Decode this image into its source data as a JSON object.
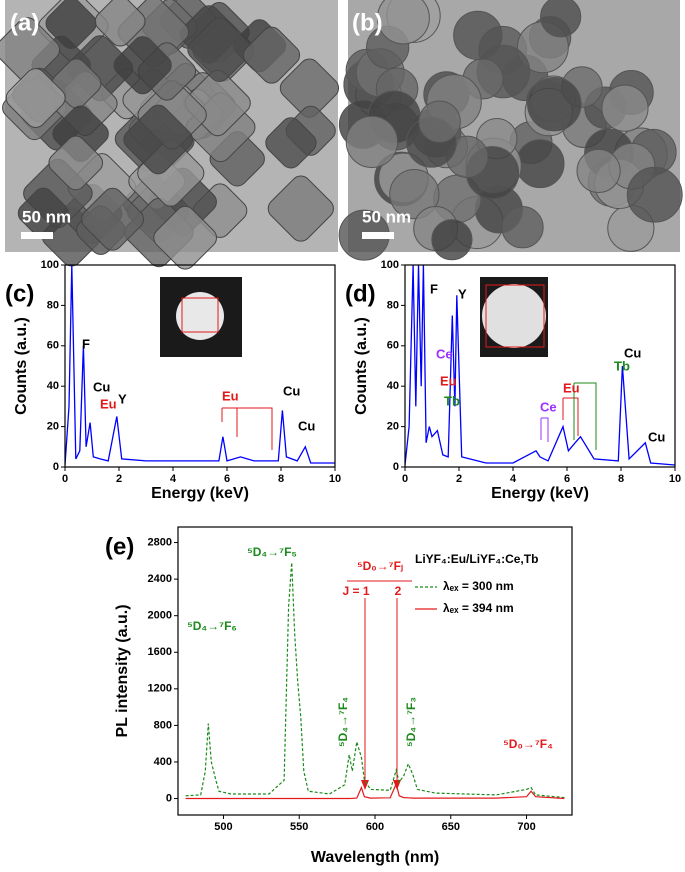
{
  "panels": {
    "a": {
      "label": "(a)",
      "scale_bar": "50 nm"
    },
    "b": {
      "label": "(b)",
      "scale_bar": "50 nm"
    }
  },
  "chart_data": [
    {
      "type": "line",
      "panel_label": "(c)",
      "x_label": "Energy (keV)",
      "y_label": "Counts (a.u.)",
      "xlim": [
        0,
        10
      ],
      "ylim": [
        0,
        100
      ],
      "xticks": [
        0,
        2,
        4,
        6,
        8,
        10
      ],
      "yticks": [
        0,
        20,
        40,
        60,
        80,
        100
      ],
      "x": [
        0,
        0.15,
        0.25,
        0.4,
        0.55,
        0.68,
        0.78,
        0.93,
        1.05,
        1.3,
        1.6,
        1.76,
        1.92,
        2.1,
        3,
        4,
        5,
        5.7,
        5.85,
        6.0,
        6.5,
        7,
        7.9,
        8.05,
        8.2,
        8.6,
        8.9,
        9.1,
        10
      ],
      "series": [
        {
          "name": "EDS",
          "color": "#0000ff",
          "values": [
            1,
            30,
            100,
            4,
            8,
            60,
            10,
            22,
            5,
            4,
            3,
            14,
            25,
            4,
            3,
            3,
            3,
            3,
            15,
            3,
            5,
            3,
            3,
            28,
            5,
            3,
            10,
            2,
            2
          ]
        }
      ],
      "annotations": [
        {
          "text": "F",
          "color": "#000000"
        },
        {
          "text": "Cu",
          "color": "#000000"
        },
        {
          "text": "Eu",
          "color": "#e31a1c"
        },
        {
          "text": "Y",
          "color": "#000000"
        },
        {
          "text": "Eu",
          "color": "#e31a1c"
        },
        {
          "text": "Cu",
          "color": "#000000"
        },
        {
          "text": "Cu",
          "color": "#000000"
        }
      ]
    },
    {
      "type": "line",
      "panel_label": "(d)",
      "x_label": "Energy (keV)",
      "y_label": "Counts (a.u.)",
      "xlim": [
        0,
        10
      ],
      "ylim": [
        0,
        100
      ],
      "xticks": [
        0,
        2,
        4,
        6,
        8,
        10
      ],
      "yticks": [
        0,
        20,
        40,
        60,
        80,
        100
      ],
      "x": [
        0,
        0.15,
        0.3,
        0.4,
        0.5,
        0.6,
        0.68,
        0.78,
        0.9,
        1.0,
        1.2,
        1.4,
        1.6,
        1.75,
        1.85,
        1.92,
        2.1,
        3,
        4,
        4.85,
        5.0,
        5.3,
        5.85,
        6.05,
        6.3,
        6.5,
        7,
        7.9,
        8.05,
        8.3,
        8.9,
        9.1,
        10
      ],
      "series": [
        {
          "name": "EDS",
          "color": "#0000ff",
          "values": [
            1,
            20,
            100,
            30,
            100,
            40,
            100,
            12,
            20,
            15,
            18,
            6,
            5,
            75,
            30,
            85,
            5,
            2,
            2,
            8,
            5,
            3,
            20,
            8,
            12,
            15,
            4,
            3,
            50,
            4,
            12,
            2,
            1
          ]
        }
      ],
      "annotations": [
        {
          "text": "F",
          "color": "#000000"
        },
        {
          "text": "Y",
          "color": "#000000"
        },
        {
          "text": "Ce",
          "color": "#9b30ff"
        },
        {
          "text": "Eu",
          "color": "#e31a1c"
        },
        {
          "text": "Tb",
          "color": "#1a8a1a"
        },
        {
          "text": "Ce",
          "color": "#9b30ff"
        },
        {
          "text": "Eu",
          "color": "#e31a1c"
        },
        {
          "text": "Tb",
          "color": "#1a8a1a"
        },
        {
          "text": "Cu",
          "color": "#000000"
        },
        {
          "text": "Cu",
          "color": "#000000"
        }
      ]
    },
    {
      "type": "line",
      "panel_label": "(e)",
      "x_label": "Wavelength  (nm)",
      "y_label": "PL intensity  (a.u.)",
      "xlim": [
        470,
        730
      ],
      "ylim": [
        -180,
        2970
      ],
      "xticks": [
        500,
        550,
        600,
        650,
        700
      ],
      "yticks": [
        0,
        400,
        800,
        1200,
        1600,
        2000,
        2400,
        2800
      ],
      "legend_title": "LiYF₄:Eu/LiYF₄:Ce,Tb",
      "x": [
        475,
        485,
        488,
        490,
        492,
        495,
        497,
        505,
        530,
        540,
        543,
        545,
        547,
        549,
        551,
        553,
        556,
        570,
        580,
        583,
        585,
        588,
        591,
        593,
        597,
        610,
        614,
        616,
        619,
        622,
        625,
        628,
        640,
        660,
        680,
        700,
        703,
        706,
        725
      ],
      "series": [
        {
          "name": "λₑₓ = 300 nm",
          "color": "#1a8a1a",
          "dashed": true,
          "values": [
            30,
            40,
            300,
            820,
            400,
            200,
            80,
            50,
            50,
            200,
            2100,
            2580,
            1800,
            1280,
            900,
            300,
            80,
            50,
            150,
            480,
            300,
            620,
            450,
            200,
            100,
            90,
            310,
            180,
            250,
            380,
            260,
            100,
            60,
            50,
            40,
            100,
            120,
            40,
            10
          ]
        },
        {
          "name": "λₑₓ = 394 nm",
          "color": "#e31a1c",
          "dashed": false,
          "values": [
            0,
            0,
            0,
            0,
            0,
            0,
            0,
            0,
            0,
            0,
            0,
            0,
            0,
            0,
            0,
            0,
            0,
            0,
            0,
            0,
            2,
            5,
            120,
            20,
            5,
            8,
            160,
            30,
            10,
            8,
            5,
            5,
            5,
            5,
            5,
            20,
            80,
            20,
            0
          ]
        }
      ],
      "annotations": [
        {
          "text": "⁵D₄→⁷F₆",
          "color": "#1a8a1a"
        },
        {
          "text": "⁵D₄→⁷F₅",
          "color": "#1a8a1a"
        },
        {
          "text": "⁵D₄→⁷F₄",
          "color": "#1a8a1a"
        },
        {
          "text": "⁵D₀→⁷Fⱼ",
          "color": "#e31a1c"
        },
        {
          "text": "J = 1",
          "color": "#e31a1c"
        },
        {
          "text": "2",
          "color": "#e31a1c"
        },
        {
          "text": "⁵D₄→⁷F₃",
          "color": "#1a8a1a"
        },
        {
          "text": "⁵D₀→⁷F₄",
          "color": "#e31a1c"
        }
      ]
    }
  ]
}
